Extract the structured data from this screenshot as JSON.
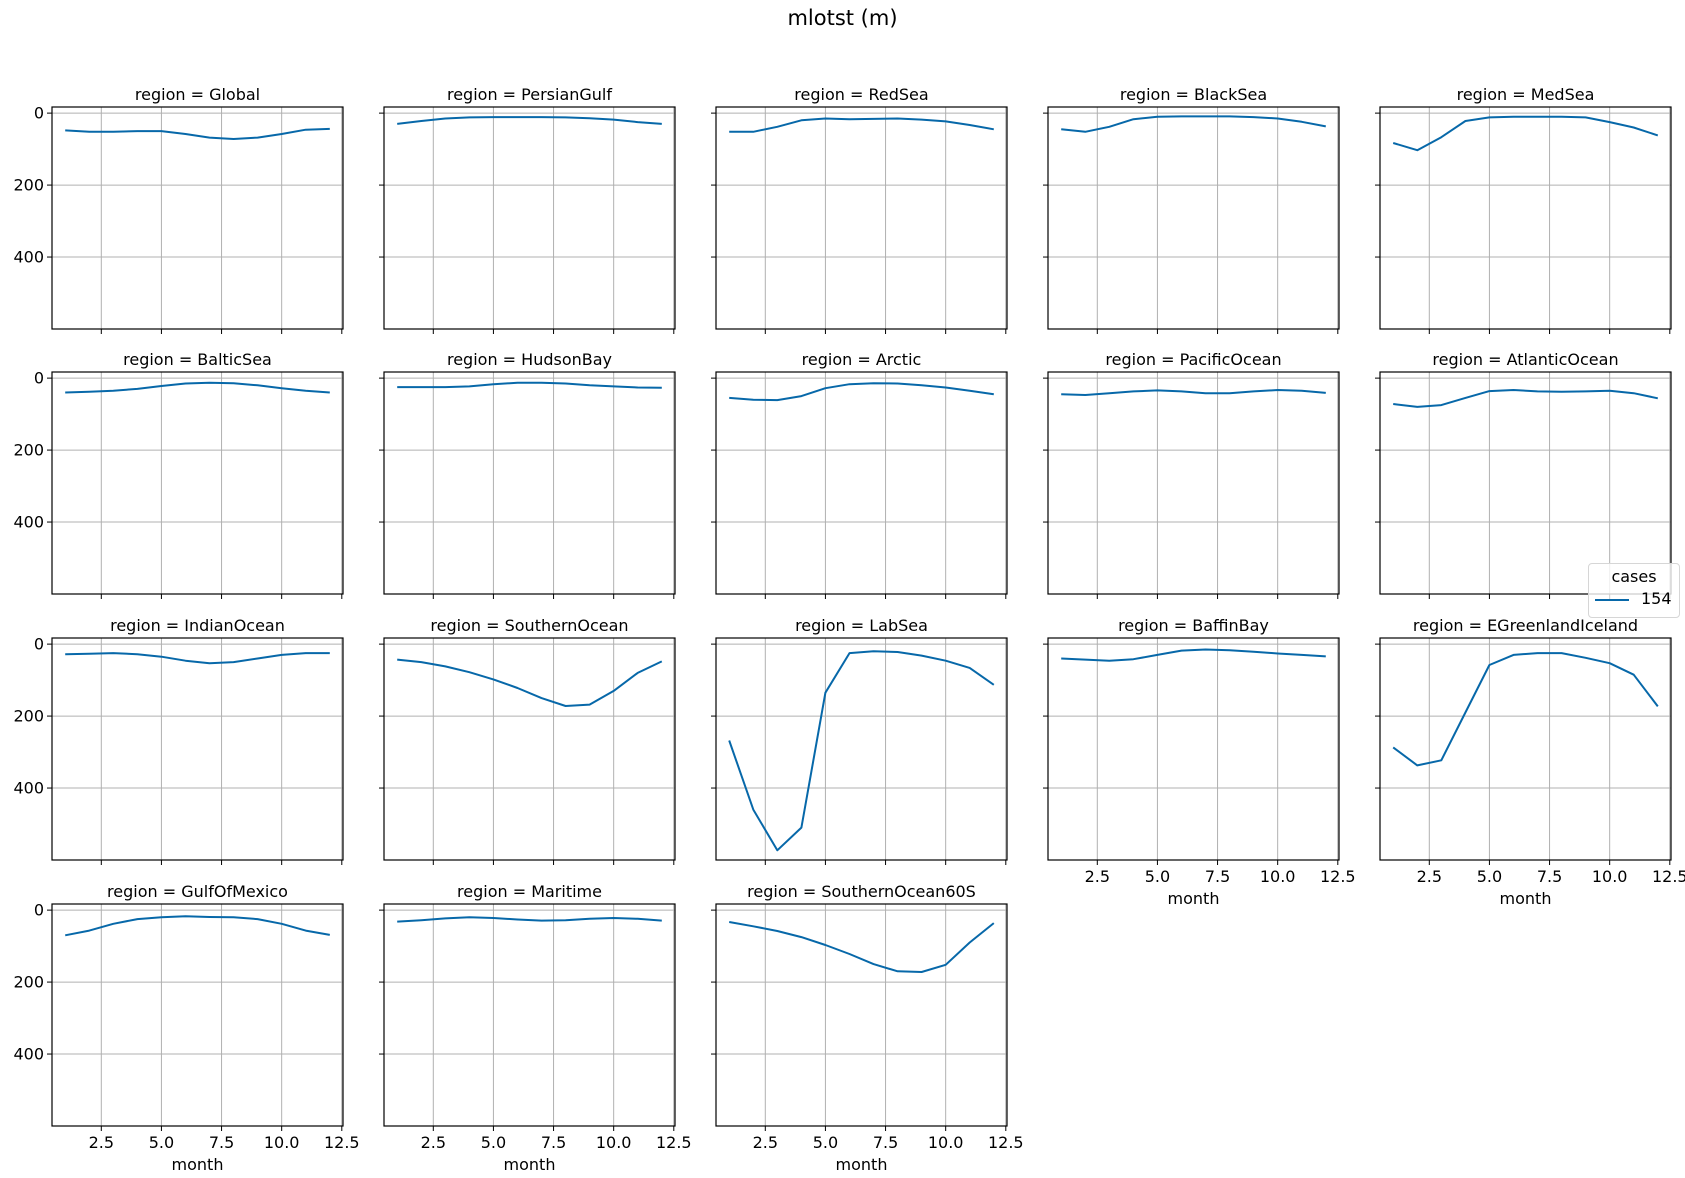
{
  "figure": {
    "suptitle": "mlotst (m)",
    "line_color": "#0768a9",
    "grid_color": "#b0b0b0"
  },
  "legend": {
    "title": "cases",
    "entries": [
      {
        "label": "154",
        "color": "#0768a9"
      }
    ]
  },
  "chart_data": {
    "type": "line",
    "title": "mlotst (m)",
    "facet": "region",
    "xlabel": "month",
    "ylabel": "",
    "xlim": [
      0.45,
      12.55
    ],
    "ylim": [
      600,
      -17
    ],
    "y_inverted": true,
    "x_ticks": [
      2.5,
      5.0,
      7.5,
      10.0,
      12.5
    ],
    "x_tick_labels": [
      "2.5",
      "5.0",
      "7.5",
      "10.0",
      "12.5"
    ],
    "y_ticks": [
      0,
      200,
      400
    ],
    "y_tick_labels": [
      "0",
      "200",
      "400"
    ],
    "grid": true,
    "legend": {
      "title": "cases",
      "entries": [
        "154"
      ],
      "position": "right-center"
    },
    "x": [
      1,
      2,
      3,
      4,
      5,
      6,
      7,
      8,
      9,
      10,
      11,
      12
    ],
    "panels": [
      {
        "title": "region = Global",
        "region": "Global",
        "values": [
          48,
          52,
          52,
          50,
          50,
          58,
          68,
          72,
          68,
          58,
          46,
          44
        ]
      },
      {
        "title": "region = PersianGulf",
        "region": "PersianGulf",
        "values": [
          30,
          22,
          15,
          12,
          11,
          11,
          11,
          12,
          14,
          18,
          25,
          30
        ]
      },
      {
        "title": "region = RedSea",
        "region": "RedSea",
        "values": [
          52,
          52,
          38,
          20,
          15,
          17,
          16,
          15,
          18,
          23,
          33,
          45
        ]
      },
      {
        "title": "region = BlackSea",
        "region": "BlackSea",
        "values": [
          45,
          52,
          38,
          17,
          10,
          9,
          9,
          9,
          11,
          15,
          24,
          37
        ]
      },
      {
        "title": "region = MedSea",
        "region": "MedSea",
        "values": [
          83,
          103,
          67,
          22,
          12,
          10,
          10,
          10,
          12,
          25,
          40,
          62
        ]
      },
      {
        "title": "region = BalticSea",
        "region": "BalticSea",
        "values": [
          40,
          38,
          35,
          30,
          22,
          15,
          13,
          14,
          20,
          28,
          35,
          40
        ]
      },
      {
        "title": "region = HudsonBay",
        "region": "HudsonBay",
        "values": [
          25,
          25,
          25,
          23,
          17,
          13,
          13,
          15,
          20,
          23,
          26,
          27
        ]
      },
      {
        "title": "region = Arctic",
        "region": "Arctic",
        "values": [
          55,
          60,
          61,
          50,
          28,
          17,
          14,
          15,
          20,
          26,
          35,
          45
        ]
      },
      {
        "title": "region = PacificOcean",
        "region": "PacificOcean",
        "values": [
          45,
          47,
          42,
          37,
          34,
          37,
          42,
          42,
          37,
          33,
          35,
          41
        ]
      },
      {
        "title": "region = AtlanticOcean",
        "region": "AtlanticOcean",
        "values": [
          72,
          80,
          75,
          55,
          36,
          33,
          37,
          38,
          37,
          35,
          42,
          56
        ]
      },
      {
        "title": "region = IndianOcean",
        "region": "IndianOcean",
        "values": [
          28,
          27,
          25,
          28,
          35,
          46,
          53,
          50,
          40,
          30,
          25,
          25
        ]
      },
      {
        "title": "region = SouthernOcean",
        "region": "SouthernOcean",
        "values": [
          43,
          50,
          62,
          78,
          98,
          122,
          150,
          172,
          168,
          130,
          80,
          48
        ]
      },
      {
        "title": "region = LabSea",
        "region": "LabSea",
        "values": [
          268,
          460,
          573,
          510,
          135,
          25,
          20,
          22,
          32,
          46,
          66,
          113
        ]
      },
      {
        "title": "region = BaffinBay",
        "region": "BaffinBay",
        "values": [
          40,
          43,
          46,
          42,
          30,
          18,
          15,
          17,
          21,
          26,
          30,
          34
        ]
      },
      {
        "title": "region = EGreenlandIceland",
        "region": "EGreenlandIceland",
        "values": [
          287,
          337,
          323,
          190,
          58,
          30,
          25,
          25,
          38,
          53,
          85,
          173
        ]
      },
      {
        "title": "region = GulfOfMexico",
        "region": "GulfOfMexico",
        "values": [
          70,
          57,
          38,
          25,
          20,
          17,
          19,
          20,
          25,
          38,
          57,
          69
        ]
      },
      {
        "title": "region = Maritime",
        "region": "Maritime",
        "values": [
          32,
          28,
          23,
          20,
          22,
          26,
          29,
          28,
          24,
          22,
          24,
          29
        ]
      },
      {
        "title": "region = SouthernOcean60S",
        "region": "SouthernOcean60S",
        "values": [
          33,
          45,
          58,
          75,
          97,
          122,
          150,
          170,
          172,
          152,
          90,
          36
        ]
      }
    ]
  }
}
